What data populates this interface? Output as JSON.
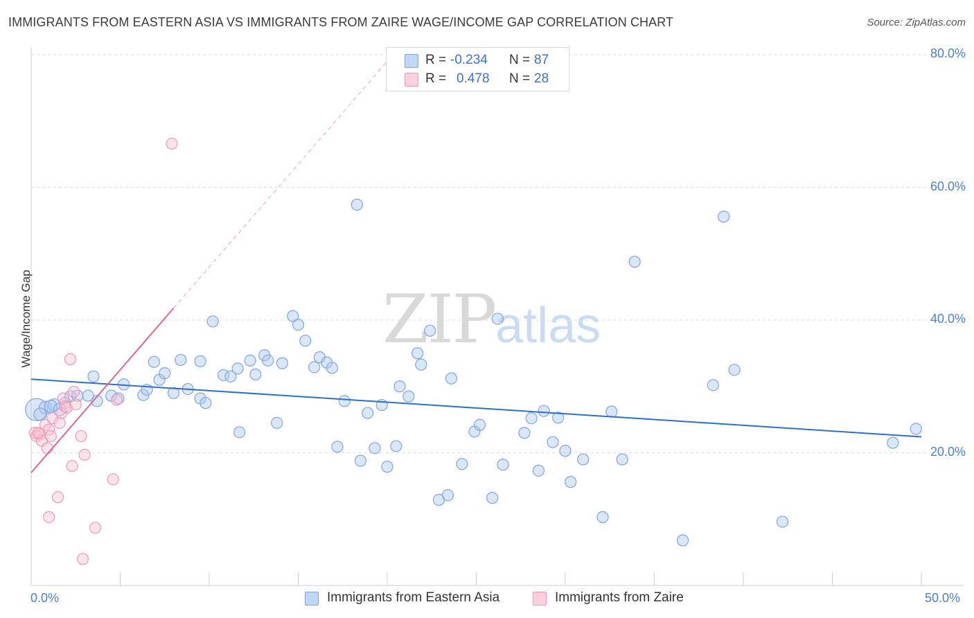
{
  "title": "IMMIGRANTS FROM EASTERN ASIA VS IMMIGRANTS FROM ZAIRE WAGE/INCOME GAP CORRELATION CHART",
  "source": "Source: ZipAtlas.com",
  "watermark": {
    "zip": "ZIP",
    "atlas": "atlas"
  },
  "legend": {
    "rows": [
      {
        "r_label": "R =",
        "r_value": "-0.234",
        "n_label": "N =",
        "n_value": "87"
      },
      {
        "r_label": "R =",
        "r_value": "0.478",
        "n_label": "N =",
        "n_value": "28"
      }
    ]
  },
  "bottom_legend": [
    "Immigrants from Eastern Asia",
    "Immigrants from Zaire"
  ],
  "colors": {
    "blue": "#7ea5e0",
    "blue_line": "#2e6fcc",
    "pink": "#ec9ab1",
    "pink_line": "#e0648d",
    "axis_text": "#4a80cc"
  },
  "chart_data": {
    "type": "scatter",
    "title": "IMMIGRANTS FROM EASTERN ASIA VS IMMIGRANTS FROM ZAIRE WAGE/INCOME GAP CORRELATION CHART",
    "xlabel": "",
    "ylabel": "Wage/Income Gap",
    "xlim": [
      0,
      50
    ],
    "ylim": [
      0,
      80
    ],
    "x_tick_labels": [
      "0.0%",
      "50.0%"
    ],
    "y_tick_labels": [
      "20.0%",
      "40.0%",
      "60.0%",
      "80.0%"
    ],
    "y_ticks": [
      20,
      40,
      60,
      80
    ],
    "grid": true,
    "series": [
      {
        "name": "Immigrants from Eastern Asia",
        "color": "#7ea5e0",
        "trend": {
          "x": [
            0,
            50
          ],
          "y": [
            31.1,
            22.4
          ]
        },
        "points": [
          [
            0.3,
            26.5,
            16
          ],
          [
            0.8,
            26.8,
            9
          ],
          [
            1.3,
            27.2,
            9
          ],
          [
            2.2,
            28.5,
            8
          ],
          [
            3.7,
            27.8,
            8
          ],
          [
            3.2,
            28.6,
            8
          ],
          [
            1.9,
            27.5,
            8
          ],
          [
            3.5,
            31.5,
            8
          ],
          [
            4.5,
            28.6,
            8
          ],
          [
            5.2,
            30.3,
            8
          ],
          [
            4.9,
            28.2,
            8
          ],
          [
            6.3,
            28.7,
            8
          ],
          [
            6.5,
            29.5,
            8
          ],
          [
            6.9,
            33.7,
            8
          ],
          [
            7.2,
            31.0,
            8
          ],
          [
            7.5,
            32.0,
            8
          ],
          [
            8.0,
            29.0,
            8
          ],
          [
            8.4,
            34.0,
            8
          ],
          [
            8.8,
            29.6,
            8
          ],
          [
            9.5,
            28.2,
            8
          ],
          [
            9.5,
            33.8,
            8
          ],
          [
            9.8,
            27.5,
            8
          ],
          [
            10.2,
            39.8,
            8
          ],
          [
            10.8,
            31.7,
            8
          ],
          [
            11.2,
            31.5,
            8
          ],
          [
            11.6,
            32.7,
            8
          ],
          [
            11.7,
            23.1,
            8
          ],
          [
            12.3,
            33.9,
            8
          ],
          [
            12.6,
            31.8,
            8
          ],
          [
            13.1,
            34.7,
            8
          ],
          [
            13.3,
            33.9,
            8
          ],
          [
            13.8,
            24.5,
            8
          ],
          [
            14.1,
            33.5,
            8
          ],
          [
            14.7,
            40.6,
            8
          ],
          [
            15.0,
            39.3,
            8
          ],
          [
            15.4,
            36.9,
            8
          ],
          [
            15.9,
            32.9,
            8
          ],
          [
            16.2,
            34.4,
            8
          ],
          [
            16.6,
            33.6,
            8
          ],
          [
            16.9,
            32.8,
            8
          ],
          [
            17.2,
            20.9,
            8
          ],
          [
            17.6,
            27.8,
            8
          ],
          [
            18.3,
            57.4,
            8
          ],
          [
            18.5,
            18.8,
            8
          ],
          [
            18.9,
            26.0,
            8
          ],
          [
            19.3,
            20.7,
            8
          ],
          [
            19.7,
            27.2,
            8
          ],
          [
            20.0,
            17.9,
            8
          ],
          [
            20.5,
            21.0,
            8
          ],
          [
            20.7,
            30.0,
            8
          ],
          [
            21.2,
            28.5,
            8
          ],
          [
            21.7,
            35.0,
            8
          ],
          [
            21.9,
            33.3,
            8
          ],
          [
            22.4,
            38.4,
            8
          ],
          [
            22.9,
            12.9,
            8
          ],
          [
            23.4,
            13.6,
            8
          ],
          [
            23.6,
            31.2,
            8
          ],
          [
            24.2,
            18.3,
            8
          ],
          [
            24.9,
            23.2,
            8
          ],
          [
            25.2,
            24.2,
            8
          ],
          [
            25.9,
            13.2,
            8
          ],
          [
            26.2,
            40.2,
            8
          ],
          [
            26.5,
            18.2,
            8
          ],
          [
            27.7,
            23.0,
            8
          ],
          [
            28.1,
            25.2,
            8
          ],
          [
            28.5,
            17.3,
            8
          ],
          [
            28.8,
            26.3,
            8
          ],
          [
            29.3,
            21.6,
            8
          ],
          [
            29.6,
            25.3,
            8
          ],
          [
            30.0,
            20.3,
            8
          ],
          [
            30.3,
            15.6,
            8
          ],
          [
            31.0,
            19.0,
            8
          ],
          [
            32.1,
            10.3,
            8
          ],
          [
            32.6,
            26.2,
            8
          ],
          [
            33.2,
            19.0,
            8
          ],
          [
            33.9,
            48.8,
            8
          ],
          [
            36.6,
            6.8,
            8
          ],
          [
            38.3,
            30.2,
            8
          ],
          [
            38.9,
            55.6,
            8
          ],
          [
            39.5,
            32.5,
            8
          ],
          [
            42.2,
            9.6,
            8
          ],
          [
            48.4,
            21.5,
            8
          ],
          [
            49.7,
            23.6,
            8
          ],
          [
            0.5,
            25.8,
            9
          ],
          [
            2.6,
            28.6,
            8
          ],
          [
            1.1,
            27.0,
            9
          ],
          [
            1.6,
            26.5,
            9
          ]
        ]
      },
      {
        "name": "Immigrants from Zaire",
        "color": "#ec9ab1",
        "trend": {
          "x": [
            0,
            8
          ],
          "y": [
            17.0,
            41.8
          ]
        },
        "trend_dashed": {
          "x": [
            8,
            20
          ],
          "y": [
            41.8,
            79.0
          ]
        },
        "points": [
          [
            0.2,
            23.0,
            8
          ],
          [
            0.3,
            22.5,
            8
          ],
          [
            0.5,
            22.8,
            8
          ],
          [
            0.6,
            21.8,
            8
          ],
          [
            0.8,
            24.2,
            8
          ],
          [
            0.9,
            20.7,
            8
          ],
          [
            1.0,
            10.3,
            8
          ],
          [
            1.0,
            23.5,
            8
          ],
          [
            1.1,
            22.5,
            8
          ],
          [
            1.2,
            25.2,
            8
          ],
          [
            1.5,
            13.3,
            8
          ],
          [
            1.6,
            24.5,
            8
          ],
          [
            1.7,
            26.0,
            8
          ],
          [
            1.8,
            28.2,
            8
          ],
          [
            1.9,
            27.0,
            8
          ],
          [
            2.0,
            26.8,
            8
          ],
          [
            2.2,
            34.1,
            8
          ],
          [
            2.3,
            18.0,
            8
          ],
          [
            2.4,
            29.2,
            8
          ],
          [
            2.5,
            27.3,
            8
          ],
          [
            2.8,
            22.5,
            8
          ],
          [
            2.9,
            4.0,
            8
          ],
          [
            3.0,
            19.7,
            8
          ],
          [
            3.6,
            8.7,
            8
          ],
          [
            4.6,
            16.0,
            8
          ],
          [
            4.8,
            28.0,
            8
          ],
          [
            7.9,
            66.6,
            8
          ],
          [
            0.4,
            23.0,
            8
          ]
        ]
      }
    ]
  }
}
